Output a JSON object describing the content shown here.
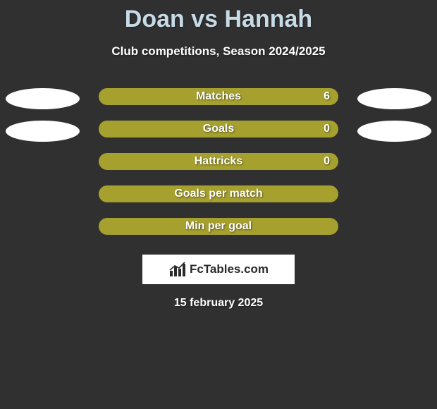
{
  "title": "Doan vs Hannah",
  "subtitle": "Club competitions, Season 2024/2025",
  "logo_text": "FcTables.com",
  "date": "15 february 2025",
  "colors": {
    "background": "#303030",
    "title": "#c7dbe6",
    "bar_fill": "#a6a02f",
    "ellipse_fill": "#ffffff",
    "logo_bg": "#ffffff",
    "logo_text": "#2a2a2a"
  },
  "rows": [
    {
      "label": "Matches",
      "value": "6",
      "show_value": true,
      "show_ellipses": true,
      "ellipse_left": "#ffffff",
      "ellipse_right": "#ffffff"
    },
    {
      "label": "Goals",
      "value": "0",
      "show_value": true,
      "show_ellipses": true,
      "ellipse_left": "#ffffff",
      "ellipse_right": "#ffffff"
    },
    {
      "label": "Hattricks",
      "value": "0",
      "show_value": true,
      "show_ellipses": false
    },
    {
      "label": "Goals per match",
      "value": "",
      "show_value": false,
      "show_ellipses": false
    },
    {
      "label": "Min per goal",
      "value": "",
      "show_value": false,
      "show_ellipses": false
    }
  ]
}
